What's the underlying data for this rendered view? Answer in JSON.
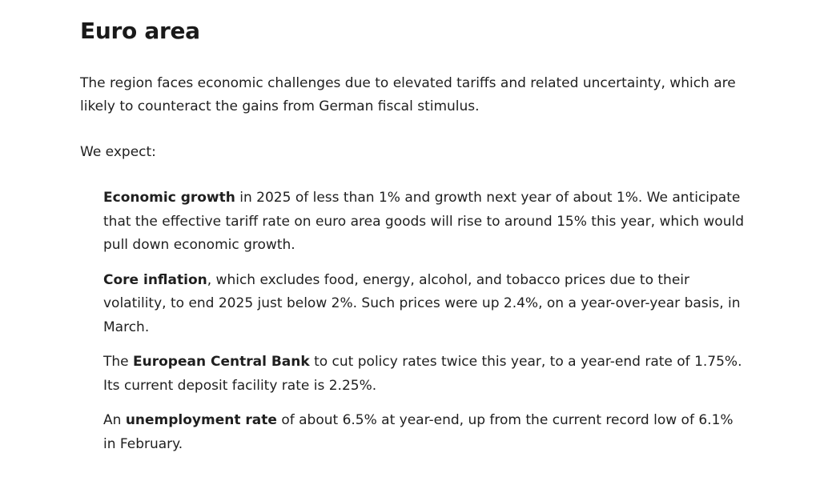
{
  "article": {
    "title": "Euro area",
    "intro": "The region faces economic challenges due to elevated tariffs and related uncertainty, which are likely to counteract the gains from German fiscal stimulus.",
    "expect_label": "We expect:",
    "items": [
      {
        "prefix": "",
        "bold": "Economic growth",
        "text": " in 2025 of less than 1% and growth next year of about 1%. We anticipate that the effective tariff rate on euro area goods will rise to around 15% this year, which would pull down economic growth."
      },
      {
        "prefix": "",
        "bold": "Core inflation",
        "text": ", which excludes food, energy, alcohol, and tobacco prices due to their volatility, to end 2025 just below 2%. Such prices were up 2.4%, on a year-over-year basis, in March."
      },
      {
        "prefix": "The ",
        "bold": "European Central Bank",
        "text": " to cut policy rates twice this year, to a year-end rate of 1.75%. Its current deposit facility rate is 2.25%."
      },
      {
        "prefix": "An ",
        "bold": "unemployment rate",
        "text": " of about 6.5% at year-end, up from the current record low of 6.1% in February."
      }
    ]
  }
}
